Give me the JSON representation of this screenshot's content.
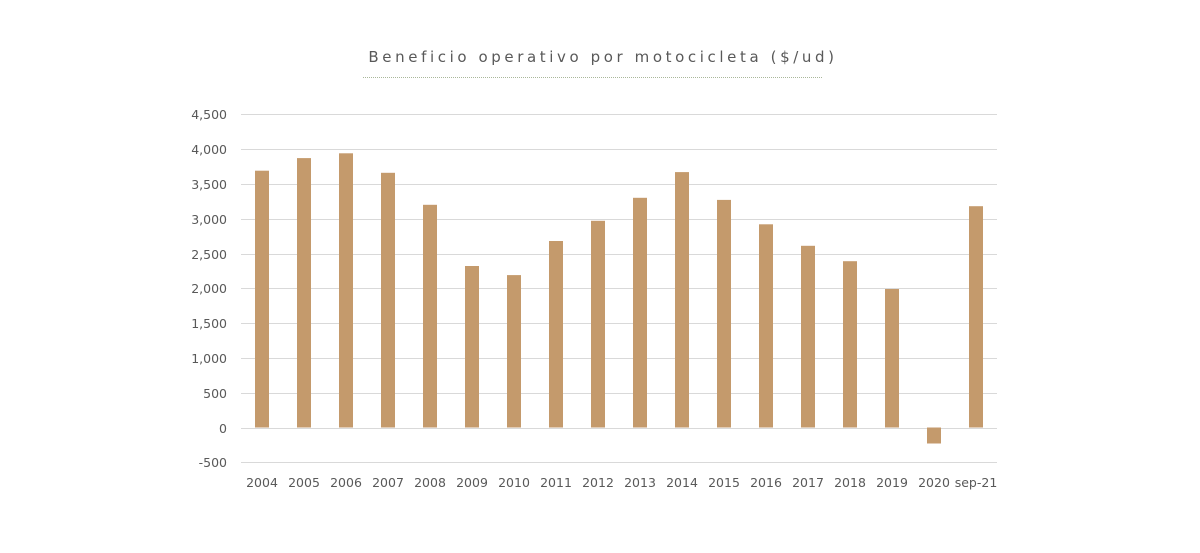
{
  "chart_data": {
    "type": "bar",
    "title": "Beneficio operativo por motocicleta ($/ud)",
    "xlabel": "",
    "ylabel": "",
    "categories": [
      "2004",
      "2005",
      "2006",
      "2007",
      "2008",
      "2009",
      "2010",
      "2011",
      "2012",
      "2013",
      "2014",
      "2015",
      "2016",
      "2017",
      "2018",
      "2019",
      "2020",
      "sep-21"
    ],
    "series": [
      {
        "name": "Beneficio operativo por motocicleta",
        "color": "#c49a6c",
        "values": [
          3690,
          3870,
          3940,
          3660,
          3200,
          2320,
          2190,
          2680,
          2970,
          3300,
          3670,
          3270,
          2920,
          2610,
          2390,
          1990,
          -230,
          3180
        ]
      }
    ],
    "ylim": [
      -500,
      4500
    ],
    "yticks": [
      -500,
      0,
      500,
      1000,
      1500,
      2000,
      2500,
      3000,
      3500,
      4000,
      4500
    ],
    "ytick_labels": [
      "-500",
      "0",
      "500",
      "1,000",
      "1,500",
      "2,000",
      "2,500",
      "3,000",
      "3,500",
      "4,000",
      "4,500"
    ],
    "grid": true,
    "legend": "none",
    "colors": {
      "bar": "#c49a6c",
      "grid": "#d9d9d9",
      "text": "#595959",
      "title_underline": "#a9b79a"
    }
  }
}
